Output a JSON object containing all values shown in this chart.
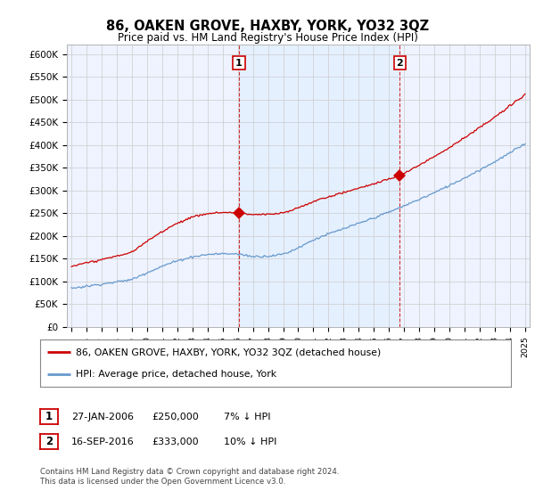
{
  "title": "86, OAKEN GROVE, HAXBY, YORK, YO32 3QZ",
  "subtitle": "Price paid vs. HM Land Registry's House Price Index (HPI)",
  "ylabel_ticks": [
    "£0",
    "£50K",
    "£100K",
    "£150K",
    "£200K",
    "£250K",
    "£300K",
    "£350K",
    "£400K",
    "£450K",
    "£500K",
    "£550K",
    "£600K"
  ],
  "ylim": [
    0,
    620000
  ],
  "yticks": [
    0,
    50000,
    100000,
    150000,
    200000,
    250000,
    300000,
    350000,
    400000,
    450000,
    500000,
    550000,
    600000
  ],
  "sale1_date": 2006.08,
  "sale1_price": 250000,
  "sale1_label": "1",
  "sale2_date": 2016.72,
  "sale2_price": 333000,
  "sale2_label": "2",
  "legend_line1": "86, OAKEN GROVE, HAXBY, YORK, YO32 3QZ (detached house)",
  "legend_line2": "HPI: Average price, detached house, York",
  "footer": "Contains HM Land Registry data © Crown copyright and database right 2024.\nThis data is licensed under the Open Government Licence v3.0.",
  "line_color_red": "#cc0000",
  "line_color_blue": "#6699cc",
  "fill_color_blue": "#ddeeff",
  "grid_color": "#cccccc",
  "bg_color": "#ffffff",
  "plot_bg_color": "#eef3ff",
  "xlim_left": 1994.7,
  "xlim_right": 2025.3
}
